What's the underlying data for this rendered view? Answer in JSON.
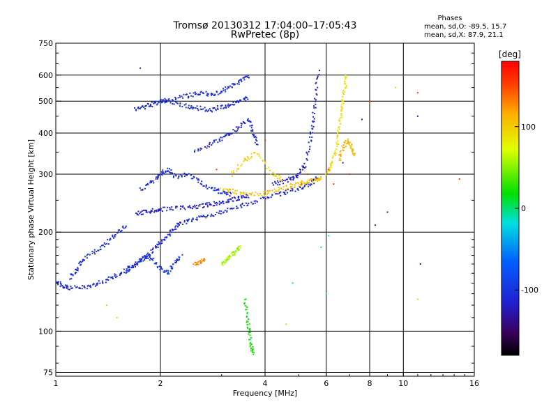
{
  "chart_data": {
    "type": "scatter",
    "title": "Tromsø 20130312 17:04:00–17:05:43",
    "subtitle": "RwPretec (8p)",
    "xlabel": "Frequency [MHz]",
    "ylabel": "Stationary phase Virtual Height [km]",
    "x_scale": "log",
    "y_scale": "log",
    "xlim": [
      1,
      16
    ],
    "ylim": [
      73,
      750
    ],
    "x_ticks": [
      "1",
      "2",
      "4",
      "6",
      "8",
      "10",
      "16"
    ],
    "x_tick_values": [
      1,
      2,
      4,
      6,
      8,
      10,
      16
    ],
    "y_ticks": [
      "75",
      "100",
      "200",
      "300",
      "400",
      "500",
      "600",
      "750"
    ],
    "y_tick_values": [
      75,
      100,
      200,
      300,
      400,
      500,
      600,
      750
    ],
    "grid": true,
    "stats": {
      "heading": "Phases",
      "line_o": "mean, sd,O: -89.5, 15.7",
      "line_x": "mean, sd,X:  87.9, 21.1"
    },
    "colorbar": {
      "label": "[deg]",
      "range": [
        -180,
        180
      ],
      "ticks": [
        "100",
        "0",
        "-100"
      ],
      "tick_values": [
        100,
        0,
        -100
      ]
    },
    "traces": [
      {
        "phase": -110,
        "points": [
          [
            1.0,
            142
          ],
          [
            1.05,
            137
          ],
          [
            1.1,
            135
          ],
          [
            1.2,
            136
          ],
          [
            1.3,
            139
          ],
          [
            1.4,
            143
          ],
          [
            1.5,
            148
          ],
          [
            1.6,
            154
          ],
          [
            1.7,
            160
          ],
          [
            1.8,
            167
          ],
          [
            1.9,
            175
          ],
          [
            2.0,
            185
          ],
          [
            2.1,
            196
          ],
          [
            2.2,
            206
          ],
          [
            2.3,
            213
          ],
          [
            2.5,
            219
          ],
          [
            2.7,
            224
          ],
          [
            3.0,
            231
          ],
          [
            3.3,
            238
          ],
          [
            3.6,
            245
          ],
          [
            4.0,
            253
          ],
          [
            4.4,
            260
          ],
          [
            4.8,
            268
          ],
          [
            5.2,
            276
          ],
          [
            5.5,
            284
          ],
          [
            5.7,
            292
          ]
        ]
      },
      {
        "phase": -115,
        "points": [
          [
            1.7,
            228
          ],
          [
            1.8,
            230
          ],
          [
            1.9,
            232
          ],
          [
            2.0,
            234
          ],
          [
            2.2,
            236
          ],
          [
            2.4,
            238
          ],
          [
            2.6,
            240
          ],
          [
            2.8,
            243
          ],
          [
            3.0,
            246
          ],
          [
            3.2,
            250
          ],
          [
            3.4,
            254
          ],
          [
            3.6,
            258
          ]
        ]
      },
      {
        "phase": -105,
        "points": [
          [
            1.75,
            270
          ],
          [
            1.9,
            285
          ],
          [
            2.0,
            300
          ],
          [
            2.1,
            310
          ],
          [
            2.2,
            295
          ],
          [
            2.4,
            300
          ],
          [
            2.6,
            285
          ],
          [
            2.8,
            270
          ],
          [
            3.0,
            265
          ],
          [
            3.2,
            260
          ]
        ]
      },
      {
        "phase": -112,
        "points": [
          [
            2.5,
            350
          ],
          [
            2.8,
            370
          ],
          [
            3.0,
            385
          ],
          [
            3.2,
            400
          ],
          [
            3.4,
            420
          ],
          [
            3.6,
            440
          ],
          [
            3.7,
            400
          ],
          [
            3.8,
            370
          ]
        ]
      },
      {
        "phase": -108,
        "points": [
          [
            1.7,
            470
          ],
          [
            1.8,
            480
          ],
          [
            1.9,
            490
          ],
          [
            2.0,
            500
          ],
          [
            2.2,
            495
          ],
          [
            2.4,
            480
          ],
          [
            2.6,
            475
          ],
          [
            2.8,
            470
          ],
          [
            3.0,
            480
          ],
          [
            3.2,
            490
          ],
          [
            3.4,
            500
          ],
          [
            3.6,
            510
          ]
        ]
      },
      {
        "phase": -110,
        "points": [
          [
            2.0,
            500
          ],
          [
            2.2,
            510
          ],
          [
            2.4,
            520
          ],
          [
            2.6,
            530
          ],
          [
            2.8,
            525
          ],
          [
            3.0,
            535
          ],
          [
            3.2,
            555
          ],
          [
            3.4,
            575
          ],
          [
            3.6,
            600
          ]
        ]
      },
      {
        "phase": -118,
        "points": [
          [
            4.2,
            280
          ],
          [
            4.5,
            285
          ],
          [
            4.8,
            292
          ],
          [
            5.0,
            300
          ],
          [
            5.2,
            320
          ],
          [
            5.4,
            380
          ],
          [
            5.5,
            440
          ],
          [
            5.6,
            520
          ],
          [
            5.7,
            620
          ]
        ]
      },
      {
        "phase": -100,
        "points": [
          [
            1.6,
            150
          ],
          [
            1.7,
            160
          ],
          [
            1.8,
            170
          ],
          [
            1.9,
            165
          ],
          [
            2.0,
            155
          ],
          [
            2.1,
            150
          ],
          [
            2.2,
            160
          ],
          [
            2.3,
            170
          ]
        ]
      },
      {
        "phase": -105,
        "points": [
          [
            1.1,
            145
          ],
          [
            1.15,
            155
          ],
          [
            1.2,
            165
          ],
          [
            1.3,
            175
          ],
          [
            1.4,
            185
          ],
          [
            1.5,
            200
          ],
          [
            1.6,
            210
          ]
        ]
      },
      {
        "phase": 105,
        "points": [
          [
            3.0,
            270
          ],
          [
            3.3,
            265
          ],
          [
            3.6,
            262
          ],
          [
            4.0,
            262
          ],
          [
            4.3,
            268
          ],
          [
            4.7,
            275
          ],
          [
            5.0,
            280
          ],
          [
            5.3,
            285
          ],
          [
            5.6,
            288
          ],
          [
            5.8,
            292
          ]
        ]
      },
      {
        "phase": 90,
        "points": [
          [
            6.0,
            300
          ],
          [
            6.2,
            320
          ],
          [
            6.4,
            350
          ],
          [
            6.5,
            400
          ],
          [
            6.6,
            450
          ],
          [
            6.7,
            500
          ],
          [
            6.8,
            560
          ],
          [
            6.9,
            600
          ]
        ]
      },
      {
        "phase": 110,
        "points": [
          [
            6.5,
            330
          ],
          [
            6.7,
            360
          ],
          [
            6.9,
            380
          ],
          [
            7.1,
            360
          ],
          [
            7.3,
            340
          ]
        ]
      },
      {
        "phase": 95,
        "points": [
          [
            3.2,
            300
          ],
          [
            3.5,
            330
          ],
          [
            3.8,
            350
          ],
          [
            4.2,
            300
          ],
          [
            4.5,
            290
          ]
        ]
      },
      {
        "phase": 60,
        "points": [
          [
            3.0,
            160
          ],
          [
            3.1,
            165
          ],
          [
            3.2,
            170
          ],
          [
            3.3,
            175
          ],
          [
            3.4,
            180
          ]
        ]
      },
      {
        "phase": 130,
        "points": [
          [
            2.5,
            160
          ],
          [
            2.6,
            162
          ],
          [
            2.7,
            165
          ]
        ]
      },
      {
        "phase": 20,
        "points": [
          [
            3.5,
            125
          ],
          [
            3.55,
            110
          ],
          [
            3.6,
            100
          ],
          [
            3.65,
            90
          ],
          [
            3.7,
            85
          ]
        ]
      }
    ],
    "scatter": [
      {
        "phase": 160,
        "points": [
          [
            5.1,
            280
          ],
          [
            5.3,
            300
          ],
          [
            6.1,
            310
          ],
          [
            6.3,
            280
          ],
          [
            2.9,
            310
          ],
          [
            4.0,
            380
          ],
          [
            8.0,
            500
          ],
          [
            7.0,
            300
          ],
          [
            11,
            530
          ],
          [
            14.5,
            290
          ]
        ]
      },
      {
        "phase": -125,
        "points": [
          [
            1.75,
            630
          ],
          [
            6.7,
            325
          ],
          [
            8.3,
            210
          ],
          [
            9.0,
            230
          ],
          [
            11,
            450
          ],
          [
            11.2,
            160
          ],
          [
            7.6,
            440
          ]
        ]
      },
      {
        "phase": 100,
        "points": [
          [
            4.6,
            105
          ],
          [
            1.4,
            120
          ],
          [
            1.5,
            110
          ],
          [
            2.6,
            240
          ],
          [
            2.7,
            220
          ],
          [
            9.5,
            550
          ],
          [
            11,
            125
          ]
        ]
      },
      {
        "phase": -20,
        "points": [
          [
            6.1,
            195
          ],
          [
            6.0,
            130
          ],
          [
            4.8,
            140
          ],
          [
            5.8,
            180
          ]
        ]
      }
    ]
  }
}
